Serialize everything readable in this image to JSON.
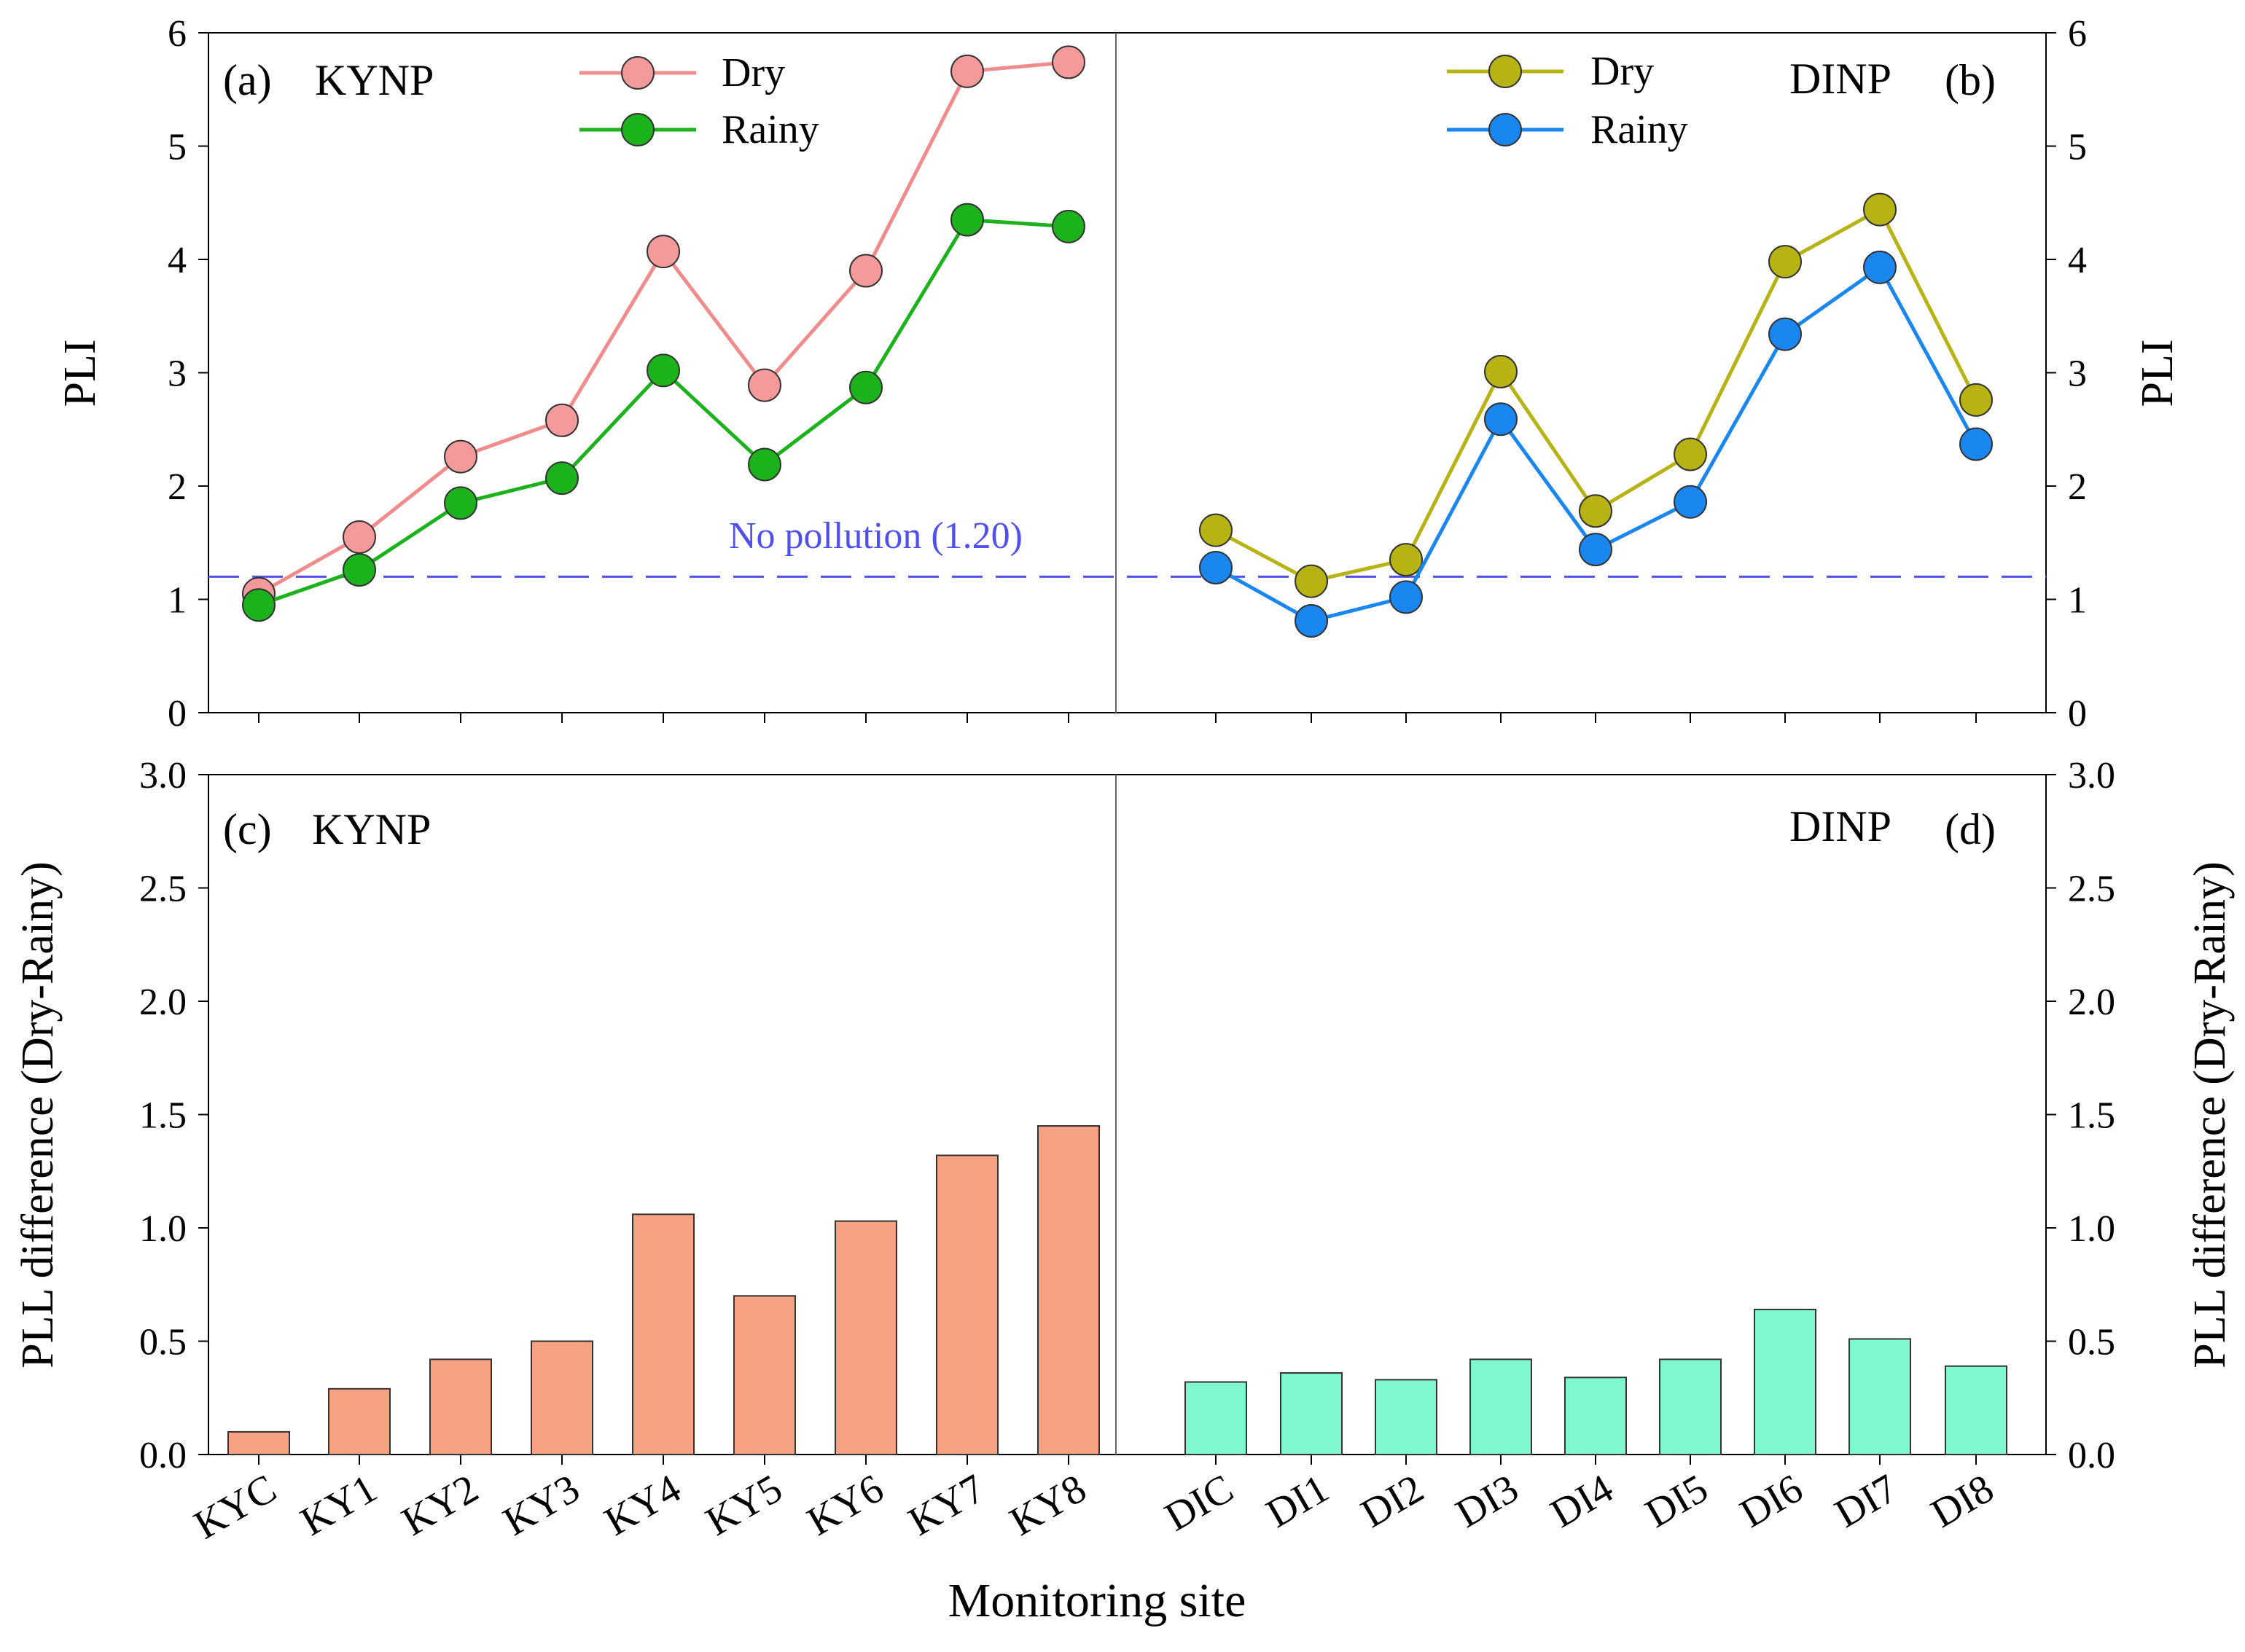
{
  "colors": {
    "ky_dry_line": "#f28b8b",
    "ky_dry_marker": "#f59a9a",
    "ky_rainy": "#1cb21c",
    "di_dry": "#b7b314",
    "di_rainy": "#1a86f0",
    "ky_bar": "#f7a283",
    "di_bar": "#7ff7cf",
    "threshold": "#5050ee"
  },
  "chart_data": [
    {
      "id": "a",
      "type": "line",
      "panel_label": "(a)",
      "site": "KYNP",
      "ylabel": "PLI",
      "ylim": [
        0,
        6
      ],
      "yticks": [
        "0",
        "1",
        "2",
        "3",
        "4",
        "5",
        "6"
      ],
      "categories": [
        "KYC",
        "KY1",
        "KY2",
        "KY3",
        "KY4",
        "KY5",
        "KY6",
        "KY7",
        "KY8"
      ],
      "series": [
        {
          "name": "Dry",
          "values": [
            1.05,
            1.55,
            2.26,
            2.58,
            4.07,
            2.89,
            3.9,
            5.66,
            5.74
          ]
        },
        {
          "name": "Rainy",
          "values": [
            0.95,
            1.26,
            1.85,
            2.07,
            3.02,
            2.19,
            2.87,
            4.35,
            4.29
          ]
        }
      ]
    },
    {
      "id": "b",
      "type": "line",
      "panel_label": "(b)",
      "site": "DINP",
      "ylabel": "PLI",
      "ylim": [
        0,
        6
      ],
      "yticks": [
        "0",
        "1",
        "2",
        "3",
        "4",
        "5",
        "6"
      ],
      "categories": [
        "DIC",
        "DI1",
        "DI2",
        "DI3",
        "DI4",
        "DI5",
        "DI6",
        "DI7",
        "DI8"
      ],
      "series": [
        {
          "name": "Dry",
          "values": [
            1.61,
            1.16,
            1.35,
            3.01,
            1.78,
            2.28,
            3.98,
            4.44,
            2.76
          ]
        },
        {
          "name": "Rainy",
          "values": [
            1.28,
            0.81,
            1.02,
            2.59,
            1.44,
            1.86,
            3.34,
            3.93,
            2.37
          ]
        }
      ]
    },
    {
      "id": "c",
      "type": "bar",
      "panel_label": "(c)",
      "site": "KYNP",
      "ylabel": "PLL difference (Dry-Rainy)",
      "ylim": [
        0,
        3
      ],
      "yticks": [
        "0.0",
        "0.5",
        "1.0",
        "1.5",
        "2.0",
        "2.5",
        "3.0"
      ],
      "categories": [
        "KYC",
        "KY1",
        "KY2",
        "KY3",
        "KY4",
        "KY5",
        "KY6",
        "KY7",
        "KY8"
      ],
      "values": [
        0.1,
        0.29,
        0.42,
        0.5,
        1.06,
        0.7,
        1.03,
        1.32,
        1.45
      ]
    },
    {
      "id": "d",
      "type": "bar",
      "panel_label": "(d)",
      "site": "DINP",
      "ylabel": "PLL difference (Dry-Rainy)",
      "ylim": [
        0,
        3
      ],
      "yticks": [
        "0.0",
        "0.5",
        "1.0",
        "1.5",
        "2.0",
        "2.5",
        "3.0"
      ],
      "categories": [
        "DIC",
        "DI1",
        "DI2",
        "DI3",
        "DI4",
        "DI5",
        "DI6",
        "DI7",
        "DI8"
      ],
      "values": [
        0.32,
        0.36,
        0.33,
        0.42,
        0.34,
        0.42,
        0.64,
        0.51,
        0.39
      ]
    }
  ],
  "threshold": {
    "value": 1.2,
    "label": "No pollution (1.20)"
  },
  "xlabel": "Monitoring site"
}
